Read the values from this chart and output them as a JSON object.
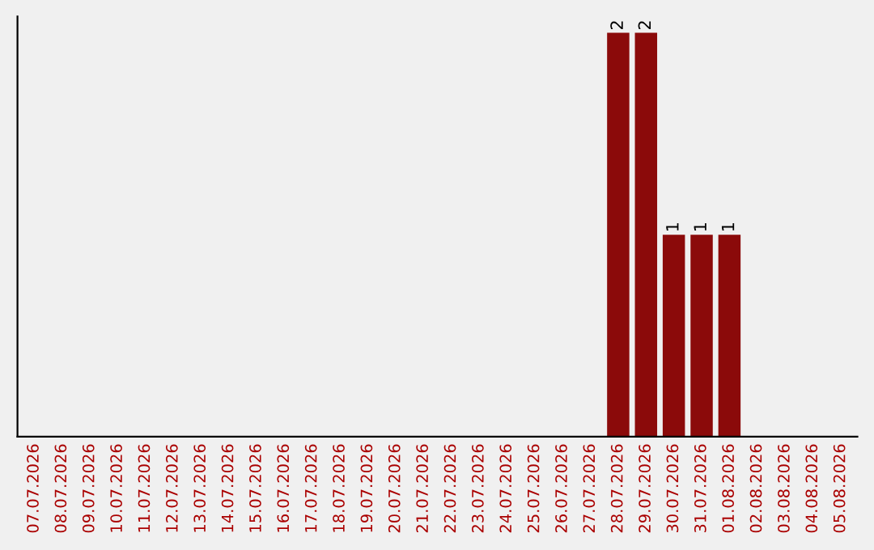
{
  "chart_data": {
    "type": "bar",
    "categories": [
      "07.07.2026",
      "08.07.2026",
      "09.07.2026",
      "10.07.2026",
      "11.07.2026",
      "12.07.2026",
      "13.07.2026",
      "14.07.2026",
      "15.07.2026",
      "16.07.2026",
      "17.07.2026",
      "18.07.2026",
      "19.07.2026",
      "20.07.2026",
      "21.07.2026",
      "22.07.2026",
      "23.07.2026",
      "24.07.2026",
      "25.07.2026",
      "26.07.2026",
      "27.07.2026",
      "28.07.2026",
      "29.07.2026",
      "30.07.2026",
      "31.07.2026",
      "01.08.2026",
      "02.08.2026",
      "03.08.2026",
      "04.08.2026",
      "05.08.2026"
    ],
    "values": [
      null,
      null,
      null,
      null,
      null,
      null,
      null,
      null,
      null,
      null,
      null,
      null,
      null,
      null,
      null,
      null,
      null,
      null,
      null,
      null,
      null,
      2,
      2,
      1,
      1,
      1,
      null,
      null,
      null,
      null
    ],
    "data_labels": true,
    "color": "#8b0a0a",
    "ylim": [
      0,
      2.08
    ],
    "tick_labels": "x",
    "grid": false,
    "legend": false
  }
}
